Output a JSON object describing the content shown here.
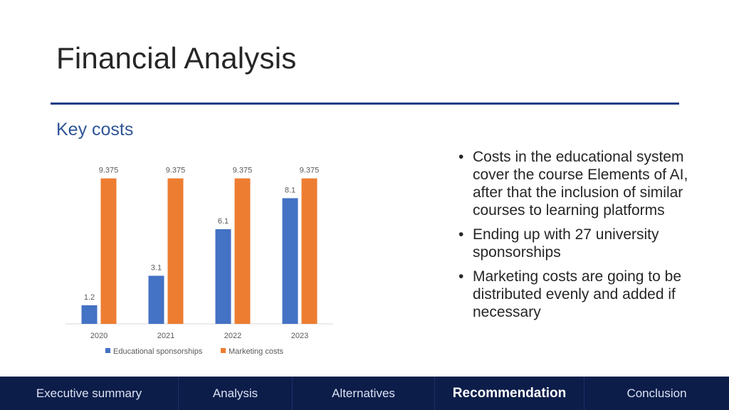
{
  "slide": {
    "title": "Financial Analysis",
    "subtitle": "Key costs"
  },
  "bullets": [
    "Costs in the educational system cover the course Elements of AI, after that the inclusion of similar courses to learning platforms",
    "Ending up with 27 university sponsorships",
    "Marketing costs are going to be distributed evenly and added if necessary"
  ],
  "nav": {
    "items": [
      "Executive summary",
      "Analysis",
      "Alternatives",
      "Recommendation",
      "Conclusion"
    ],
    "active": "Recommendation"
  },
  "colors": {
    "accent_rule": "#1f3c88",
    "subtitle": "#2f5597",
    "nav_bg": "#0c1d4a",
    "series_educational": "#4472c4",
    "series_marketing": "#ed7d31"
  },
  "chart_data": {
    "type": "bar",
    "categories": [
      "2020",
      "2021",
      "2022",
      "2023"
    ],
    "series": [
      {
        "name": "Educational sponsorships",
        "values": [
          1.2,
          3.1,
          6.1,
          8.1
        ],
        "labels": [
          "1.2",
          "3.1",
          "6.1",
          "8.1"
        ]
      },
      {
        "name": "Marketing costs",
        "values": [
          9.375,
          9.375,
          9.375,
          9.375
        ],
        "labels": [
          "9.375",
          "9.375",
          "9.375",
          "9.375"
        ]
      }
    ],
    "ylim": [
      0,
      10
    ],
    "grid": false,
    "legend": "bottom"
  }
}
